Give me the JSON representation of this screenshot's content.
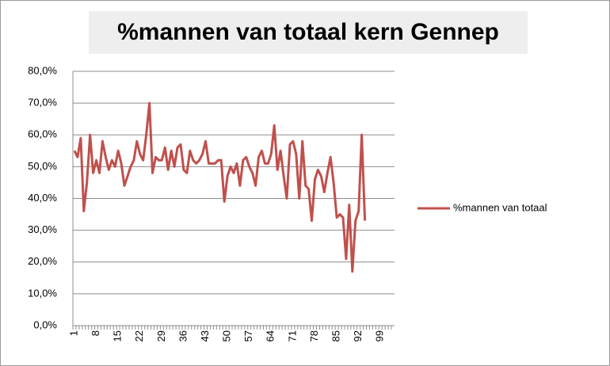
{
  "chart_data": {
    "type": "line",
    "title": "%mannen van totaal kern Gennep",
    "categories": [
      "1",
      null,
      null,
      null,
      null,
      null,
      null,
      "8",
      null,
      null,
      null,
      null,
      null,
      null,
      "15",
      null,
      null,
      null,
      null,
      null,
      null,
      "22",
      null,
      null,
      null,
      null,
      null,
      null,
      "29",
      null,
      null,
      null,
      null,
      null,
      null,
      "36",
      null,
      null,
      null,
      null,
      null,
      null,
      "43",
      null,
      null,
      null,
      null,
      null,
      null,
      "50",
      null,
      null,
      null,
      null,
      null,
      null,
      "57",
      null,
      null,
      null,
      null,
      null,
      null,
      "64",
      null,
      null,
      null,
      null,
      null,
      null,
      "71",
      null,
      null,
      null,
      null,
      null,
      null,
      "78",
      null,
      null,
      null,
      null,
      null,
      null,
      "85",
      null,
      null,
      null,
      null,
      null,
      null,
      "92",
      null,
      null,
      null,
      null,
      null,
      null,
      "99",
      null,
      null,
      null,
      null
    ],
    "series": [
      {
        "name": "%mannen van totaal",
        "color": "#c0504d",
        "values": [
          55,
          53,
          59,
          36,
          45,
          60,
          48,
          52,
          48,
          58,
          53,
          49,
          52,
          50,
          55,
          51,
          44,
          47,
          50,
          52,
          58,
          54,
          52,
          60,
          70,
          48,
          53,
          52,
          52,
          56,
          49,
          55,
          50,
          56,
          57,
          49,
          48,
          55,
          52,
          51,
          52,
          54,
          58,
          51,
          51,
          51,
          52,
          52,
          39,
          47,
          50,
          48,
          51,
          44,
          52,
          53,
          50,
          48,
          44,
          53,
          55,
          51,
          51,
          54,
          63,
          49,
          55,
          47,
          40,
          57,
          58,
          54,
          40,
          58,
          44,
          43,
          33,
          46,
          49,
          47,
          42,
          48,
          53,
          45,
          34,
          35,
          34,
          21,
          38,
          17,
          33,
          36,
          60,
          33,
          null,
          null,
          null,
          null,
          null,
          null,
          null,
          null,
          null
        ]
      }
    ],
    "ylim": [
      0,
      80
    ],
    "yticks": [
      {
        "value": 0,
        "label": "0,0%"
      },
      {
        "value": 10,
        "label": "10,0%"
      },
      {
        "value": 20,
        "label": "20,0%"
      },
      {
        "value": 30,
        "label": "30,0%"
      },
      {
        "value": 40,
        "label": "40,0%"
      },
      {
        "value": 50,
        "label": "50,0%"
      },
      {
        "value": 60,
        "label": "60,0%"
      },
      {
        "value": 70,
        "label": "70,0%"
      },
      {
        "value": 80,
        "label": "80,0%"
      }
    ],
    "grid": true,
    "legend": "right"
  }
}
